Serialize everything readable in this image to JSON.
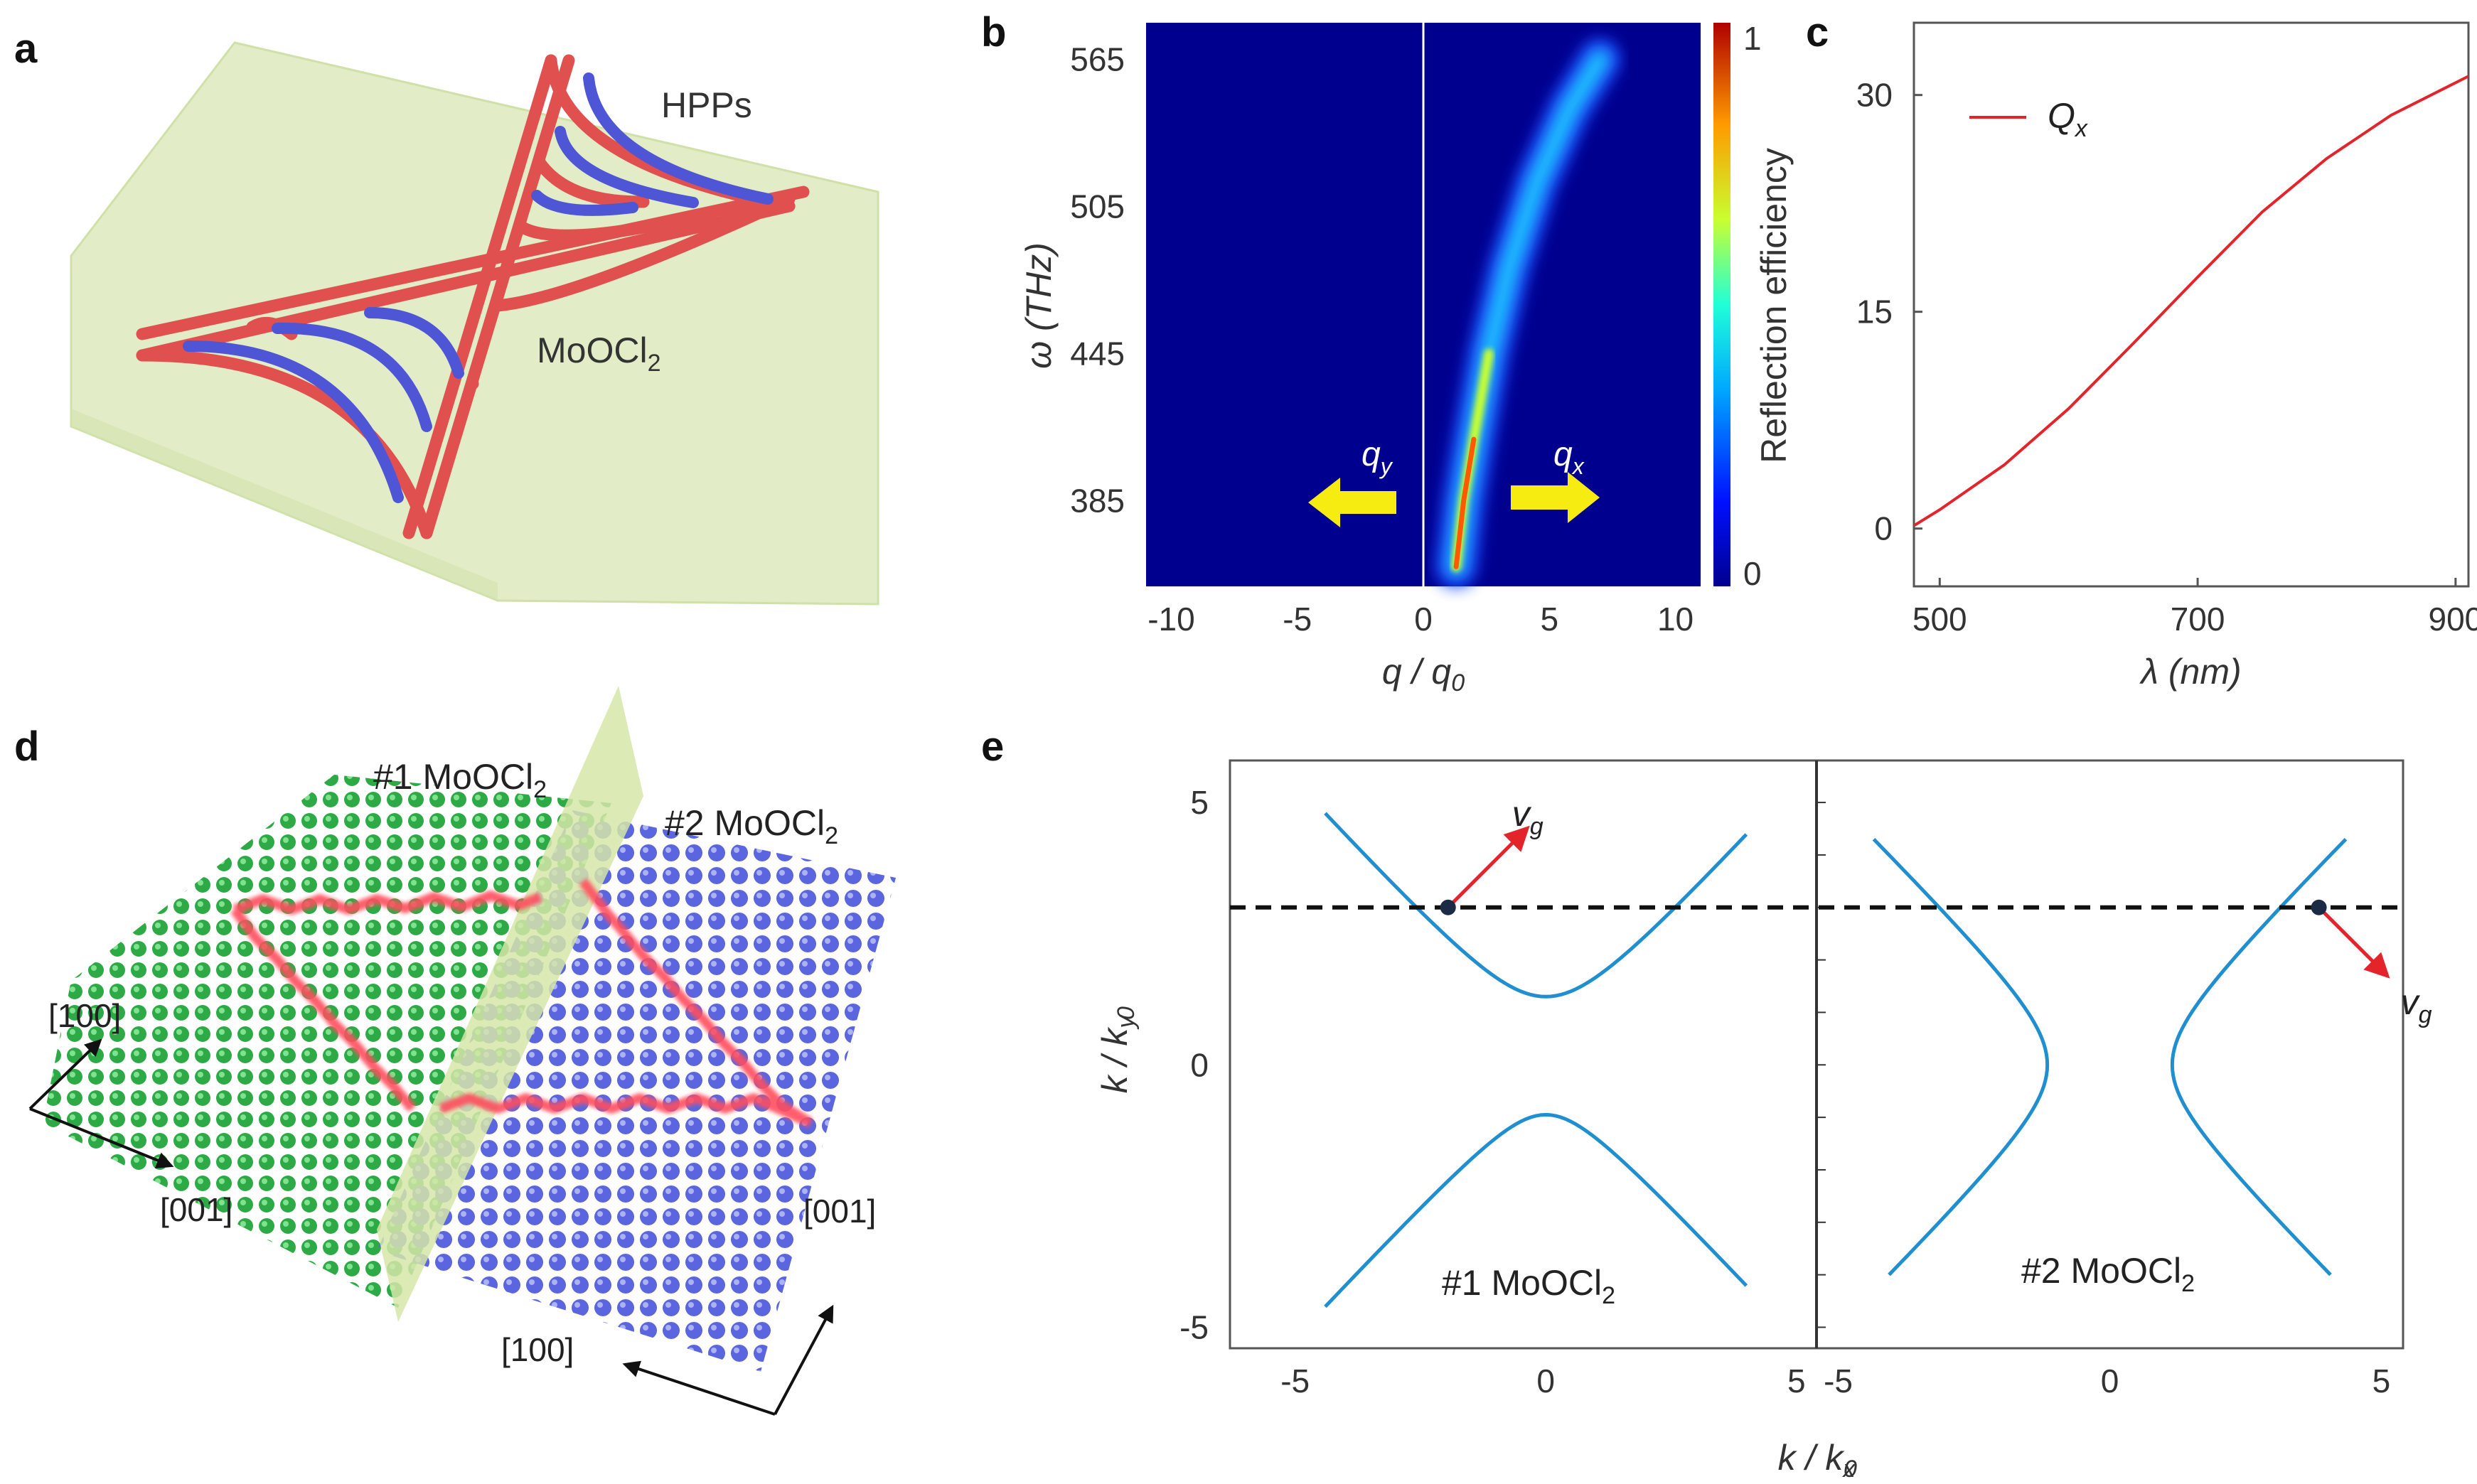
{
  "panels": {
    "a": {
      "label": "a",
      "hpps_label": "HPPs",
      "material_label": "MoOCl",
      "material_sub": "2"
    },
    "b": {
      "label": "b"
    },
    "c": {
      "label": "c"
    },
    "d": {
      "label": "d",
      "left_crystal": "#1 MoOCl",
      "left_sub": "2",
      "right_crystal": "#2 MoOCl",
      "right_sub": "2",
      "left_axis_up": "[100]",
      "left_axis_right": "[001]",
      "right_axis_up": "[001]",
      "right_axis_left": "[100]"
    },
    "e": {
      "label": "e"
    }
  },
  "colors": {
    "hpp_red": "#e0504f",
    "hpp_blue": "#4f56d6",
    "slab": "#e2edc7",
    "curve_red": "#e3242b",
    "curve_blue": "#1f8fd0",
    "heat_bg": "#00008f",
    "arrow_yellow": "#f6ec12",
    "atom_green": "#2daa46",
    "atom_blue": "#5b66de"
  },
  "chart_data": [
    {
      "panel": "b",
      "type": "heatmap",
      "title": "",
      "xlabel": "q / q",
      "xlabel_sub": "0",
      "ylabel": "ω (THz)",
      "xlim": [
        -11,
        11
      ],
      "ylim": [
        350,
        580
      ],
      "xticks": [
        -10,
        -5,
        0,
        5,
        10
      ],
      "yticks": [
        385,
        445,
        505,
        565
      ],
      "colorbar": {
        "label": "Reflection efficiency",
        "ticks": [
          0,
          1
        ],
        "range": [
          0,
          1
        ]
      },
      "dispersion_branch": {
        "x": [
          1.3,
          1.6,
          2.0,
          2.6,
          3.4,
          4.5,
          5.8,
          7.0
        ],
        "y": [
          358,
          385,
          410,
          445,
          480,
          515,
          545,
          565
        ]
      },
      "annotations": {
        "left_arrow": "q",
        "left_sub": "y",
        "right_arrow": "q",
        "right_sub": "x"
      }
    },
    {
      "panel": "c",
      "type": "line",
      "xlabel": "λ (nm)",
      "ylabel": "",
      "xlim": [
        480,
        910
      ],
      "ylim": [
        -4,
        35
      ],
      "xticks": [
        500,
        700,
        900
      ],
      "yticks": [
        0,
        15,
        30
      ],
      "legend_placement": "top-left",
      "series": [
        {
          "name": "Q",
          "name_sub": "x",
          "x": [
            480,
            500,
            550,
            600,
            650,
            700,
            750,
            800,
            850,
            910
          ],
          "values": [
            0.2,
            1.3,
            4.4,
            8.3,
            12.8,
            17.4,
            21.9,
            25.6,
            28.6,
            31.3
          ]
        }
      ]
    },
    {
      "panel": "e",
      "type": "line",
      "xlabel": "k / k",
      "xlabel_sub_1": "x",
      "xlabel_sub_2": "0",
      "ylabel": "k / k",
      "ylabel_sub_1": "y",
      "ylabel_sub_2": "0",
      "ylim": [
        -5.4,
        5.8
      ],
      "yticks": [
        -5,
        0,
        5
      ],
      "reference_line_y": 3.0,
      "subplots": [
        {
          "name": "#1 MoOCl",
          "name_sub": "2",
          "xlim": [
            -6.3,
            5.4
          ],
          "xticks": [
            -5,
            0,
            5
          ],
          "hyperbola": {
            "orientation": "vertical",
            "a": 1.2,
            "b": 0.95,
            "bottom_vertex": -0.95,
            "top_vertex": 1.3
          },
          "point": {
            "x": -1.95,
            "y": 3.0,
            "label": "v",
            "label_sub": "g"
          }
        },
        {
          "name": "#2 MoOCl",
          "name_sub": "2",
          "xlim": [
            -5.4,
            5.4
          ],
          "xticks": [
            -5,
            0,
            5
          ],
          "hyperbola": {
            "orientation": "horizontal",
            "a": 1.15,
            "b": 1.45
          },
          "point": {
            "x": 3.85,
            "y": 3.0,
            "label": "v",
            "label_sub": "g"
          }
        }
      ]
    }
  ]
}
